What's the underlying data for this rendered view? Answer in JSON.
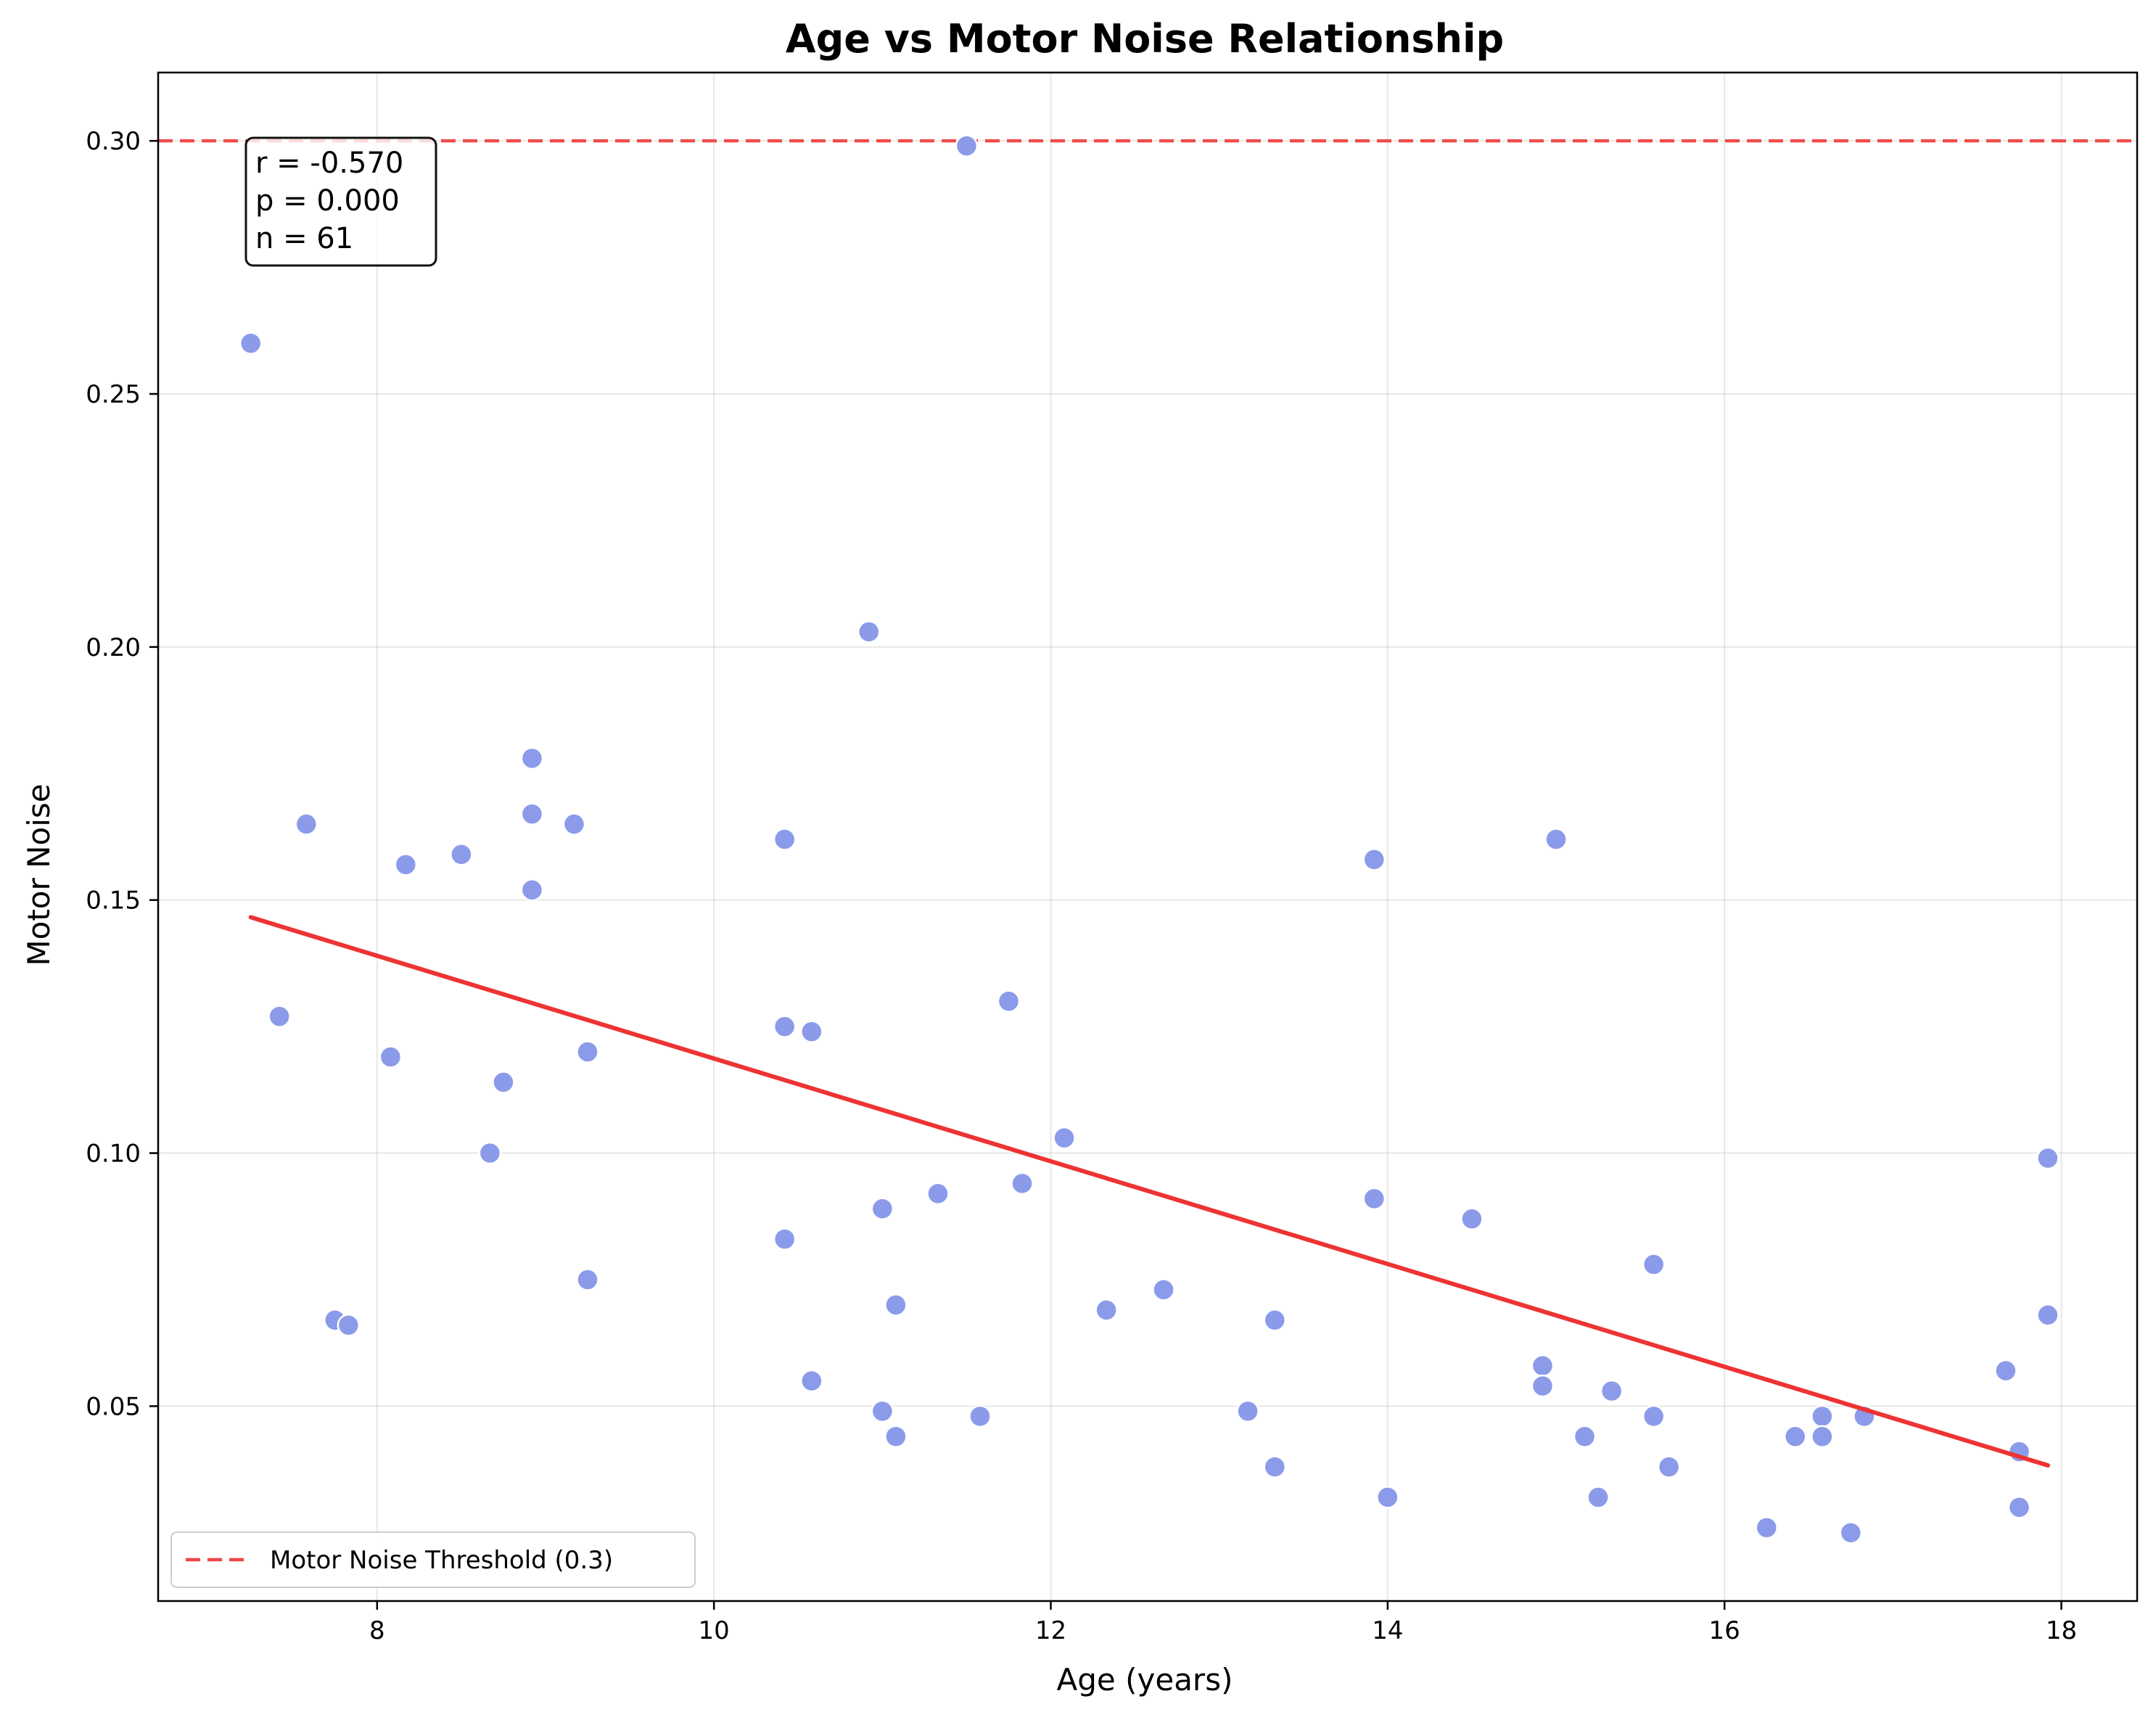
{
  "chart_data": {
    "type": "scatter",
    "title": "Age vs Motor Noise Relationship",
    "xlabel": "Age (years)",
    "ylabel": "Motor Noise",
    "xlim": [
      6.7,
      18.45
    ],
    "ylim": [
      0.0115,
      0.3135
    ],
    "x_ticks": [
      8,
      10,
      12,
      14,
      16,
      18
    ],
    "y_ticks": [
      0.05,
      0.1,
      0.15,
      0.2,
      0.25,
      0.3
    ],
    "x_tick_labels": [
      "8",
      "10",
      "12",
      "14",
      "16",
      "18"
    ],
    "y_tick_labels": [
      "0.05",
      "0.10",
      "0.15",
      "0.20",
      "0.25",
      "0.30"
    ],
    "grid": true,
    "point_color": "#8b9bea",
    "trend_color": "#ee3333",
    "threshold_color": "#ee4444",
    "points": [
      [
        7.25,
        0.26
      ],
      [
        11.5,
        0.299
      ],
      [
        10.92,
        0.203
      ],
      [
        8.92,
        0.178
      ],
      [
        8.92,
        0.167
      ],
      [
        9.17,
        0.165
      ],
      [
        7.58,
        0.165
      ],
      [
        8.5,
        0.159
      ],
      [
        8.17,
        0.157
      ],
      [
        10.42,
        0.162
      ],
      [
        15.0,
        0.162
      ],
      [
        13.92,
        0.158
      ],
      [
        8.92,
        0.152
      ],
      [
        11.75,
        0.13
      ],
      [
        7.42,
        0.127
      ],
      [
        10.42,
        0.125
      ],
      [
        10.58,
        0.124
      ],
      [
        9.25,
        0.12
      ],
      [
        8.08,
        0.119
      ],
      [
        8.75,
        0.114
      ],
      [
        12.08,
        0.103
      ],
      [
        8.67,
        0.1
      ],
      [
        11.83,
        0.094
      ],
      [
        11.33,
        0.092
      ],
      [
        13.92,
        0.091
      ],
      [
        11.0,
        0.089
      ],
      [
        14.5,
        0.087
      ],
      [
        10.42,
        0.083
      ],
      [
        15.58,
        0.078
      ],
      [
        9.25,
        0.075
      ],
      [
        12.67,
        0.073
      ],
      [
        11.08,
        0.07
      ],
      [
        12.33,
        0.069
      ],
      [
        17.92,
        0.099
      ],
      [
        17.92,
        0.068
      ],
      [
        13.33,
        0.067
      ],
      [
        7.75,
        0.067
      ],
      [
        7.83,
        0.066
      ],
      [
        14.92,
        0.058
      ],
      [
        17.67,
        0.057
      ],
      [
        10.58,
        0.055
      ],
      [
        14.92,
        0.054
      ],
      [
        15.33,
        0.053
      ],
      [
        11.0,
        0.049
      ],
      [
        13.17,
        0.049
      ],
      [
        11.58,
        0.048
      ],
      [
        15.58,
        0.048
      ],
      [
        16.58,
        0.048
      ],
      [
        16.83,
        0.048
      ],
      [
        16.42,
        0.044
      ],
      [
        16.58,
        0.044
      ],
      [
        15.17,
        0.044
      ],
      [
        11.08,
        0.044
      ],
      [
        17.75,
        0.041
      ],
      [
        13.33,
        0.038
      ],
      [
        15.67,
        0.038
      ],
      [
        14.0,
        0.032
      ],
      [
        15.25,
        0.032
      ],
      [
        17.75,
        0.03
      ],
      [
        16.25,
        0.026
      ],
      [
        16.75,
        0.025
      ]
    ],
    "trend_line": {
      "x": [
        7.25,
        17.92
      ],
      "y": [
        0.1466,
        0.0383
      ]
    },
    "threshold": {
      "y": 0.3,
      "label": "Motor Noise Threshold (0.3)"
    },
    "stats": {
      "r": "r = -0.570",
      "p": "p = 0.000",
      "n": "n = 61"
    },
    "legend_position": "lower-left"
  }
}
